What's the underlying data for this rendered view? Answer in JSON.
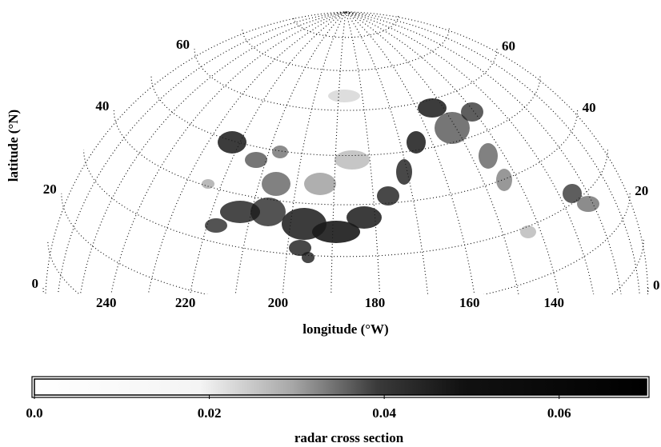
{
  "chart_data": {
    "type": "map",
    "xlabel": "longitude (°W)",
    "ylabel": "latitude (°N)",
    "xticks": [
      240,
      220,
      200,
      180,
      160,
      140
    ],
    "yticks": [
      0,
      20,
      40,
      60
    ],
    "colorbar": {
      "label": "radar cross section",
      "lim": [
        0,
        0.07
      ],
      "ticks": [
        {
          "value": 0,
          "label": "0.0"
        },
        0.02,
        0.04,
        0.06
      ]
    }
  }
}
